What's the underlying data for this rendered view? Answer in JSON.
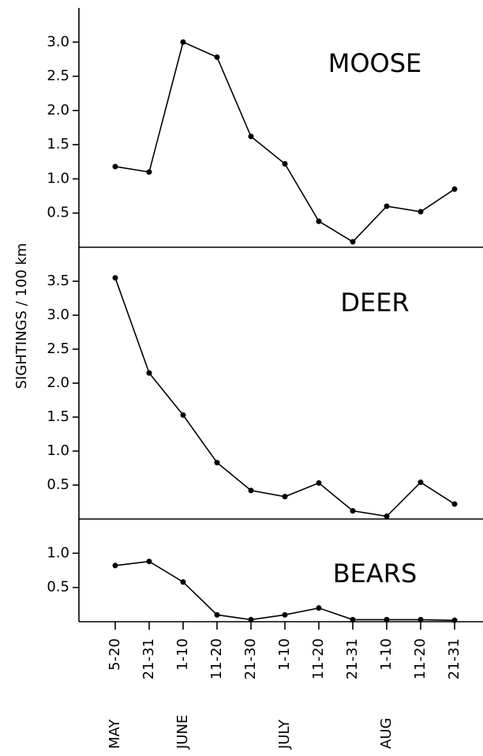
{
  "y_label": "SIGHTINGS / 100 km",
  "chart_data": [
    {
      "type": "line",
      "title": "MOOSE",
      "color": "#000000",
      "series": [
        {
          "values": [
            1.18,
            1.1,
            3.0,
            2.78,
            1.62,
            1.22,
            0.38,
            0.08,
            0.6,
            0.52,
            0.85
          ]
        }
      ],
      "ylim": [
        0,
        3.5
      ],
      "yticks": [
        0.5,
        {
          "value": 1,
          "label": "1.0"
        },
        1.5,
        {
          "value": 2,
          "label": "2.0"
        },
        2.5,
        {
          "value": 3,
          "label": "3.0"
        }
      ]
    },
    {
      "type": "line",
      "title": "DEER",
      "color": "#000000",
      "series": [
        {
          "values": [
            3.55,
            2.15,
            1.53,
            0.83,
            0.42,
            0.33,
            0.53,
            0.12,
            0.04,
            0.54,
            0.22
          ]
        }
      ],
      "ylim": [
        0,
        4
      ],
      "yticks": [
        0.5,
        {
          "value": 1,
          "label": "1.0"
        },
        1.5,
        {
          "value": 2,
          "label": "2.0"
        },
        2.5,
        {
          "value": 3,
          "label": "3.0"
        },
        3.5
      ]
    },
    {
      "type": "line",
      "title": "BEARS",
      "color": "#000000",
      "series": [
        {
          "values": [
            0.82,
            0.88,
            0.58,
            0.1,
            0.03,
            0.1,
            0.2,
            0.03,
            0.03,
            0.03,
            0.02
          ]
        }
      ],
      "ylim": [
        0,
        1.5
      ],
      "yticks": [
        0.5,
        {
          "value": 1,
          "label": "1.0"
        }
      ],
      "categories": [
        "5-20",
        "21-31",
        "1-10",
        "11-20",
        "21-30",
        "1-10",
        "11-20",
        "21-31",
        "1-10",
        "11-20",
        "21-31"
      ],
      "month_categories": [
        "MAY",
        null,
        "JUNE",
        null,
        null,
        "JULY",
        null,
        null,
        "AUG",
        null,
        null
      ]
    }
  ]
}
